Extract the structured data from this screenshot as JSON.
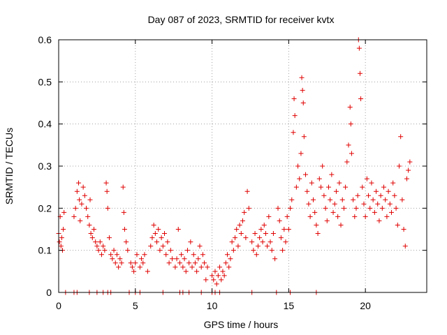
{
  "chart_data": {
    "type": "scatter",
    "title": "Day 087 of 2023, SRMTID for receiver kvtx",
    "xlabel": "GPS time / hours",
    "ylabel": "SRMTID / TECUs",
    "xlim": [
      0,
      24
    ],
    "ylim": [
      0,
      0.6
    ],
    "x_ticks": [
      0,
      5,
      10,
      15,
      20
    ],
    "y_ticks": [
      0,
      0.1,
      0.2,
      0.3,
      0.4,
      0.5,
      0.6
    ],
    "x_tick_labels": [
      "0",
      "5",
      "10",
      "15",
      "20"
    ],
    "y_tick_labels": [
      "0",
      "0.1",
      "0.2",
      "0.3",
      "0.4",
      "0.5",
      "0.6"
    ],
    "grid": true,
    "marker": "plus",
    "color": "#e00000",
    "series": [
      {
        "name": "SRMTID",
        "points": [
          [
            0.0,
            0.14
          ],
          [
            0.05,
            0.12
          ],
          [
            0.1,
            0.18
          ],
          [
            0.15,
            0.11
          ],
          [
            0.2,
            0.13
          ],
          [
            0.25,
            0.1
          ],
          [
            0.3,
            0.15
          ],
          [
            0.35,
            0.19
          ],
          [
            1.0,
            0.18
          ],
          [
            1.1,
            0.2
          ],
          [
            1.2,
            0.24
          ],
          [
            1.3,
            0.26
          ],
          [
            1.35,
            0.22
          ],
          [
            1.4,
            0.17
          ],
          [
            1.5,
            0.21
          ],
          [
            1.6,
            0.25
          ],
          [
            1.7,
            0.23
          ],
          [
            1.8,
            0.2
          ],
          [
            1.9,
            0.18
          ],
          [
            2.0,
            0.16
          ],
          [
            2.05,
            0.22
          ],
          [
            2.1,
            0.14
          ],
          [
            2.2,
            0.13
          ],
          [
            2.3,
            0.15
          ],
          [
            2.4,
            0.12
          ],
          [
            2.5,
            0.11
          ],
          [
            2.6,
            0.1
          ],
          [
            2.7,
            0.12
          ],
          [
            2.8,
            0.09
          ],
          [
            2.9,
            0.11
          ],
          [
            3.0,
            0.1
          ],
          [
            3.1,
            0.26
          ],
          [
            3.15,
            0.24
          ],
          [
            3.2,
            0.2
          ],
          [
            3.3,
            0.13
          ],
          [
            3.4,
            0.09
          ],
          [
            3.5,
            0.08
          ],
          [
            3.6,
            0.1
          ],
          [
            3.7,
            0.07
          ],
          [
            3.8,
            0.09
          ],
          [
            3.9,
            0.06
          ],
          [
            4.0,
            0.08
          ],
          [
            4.1,
            0.07
          ],
          [
            4.2,
            0.25
          ],
          [
            4.25,
            0.19
          ],
          [
            4.3,
            0.15
          ],
          [
            4.4,
            0.12
          ],
          [
            4.5,
            0.1
          ],
          [
            4.7,
            0.07
          ],
          [
            4.8,
            0.06
          ],
          [
            4.9,
            0.05
          ],
          [
            5.0,
            0.07
          ],
          [
            5.1,
            0.09
          ],
          [
            5.3,
            0.06
          ],
          [
            5.4,
            0.08
          ],
          [
            5.5,
            0.07
          ],
          [
            5.6,
            0.09
          ],
          [
            5.8,
            0.05
          ],
          [
            6.0,
            0.11
          ],
          [
            6.1,
            0.13
          ],
          [
            6.2,
            0.16
          ],
          [
            6.3,
            0.14
          ],
          [
            6.4,
            0.12
          ],
          [
            6.5,
            0.15
          ],
          [
            6.6,
            0.1
          ],
          [
            6.7,
            0.13
          ],
          [
            6.8,
            0.11
          ],
          [
            6.9,
            0.14
          ],
          [
            7.0,
            0.09
          ],
          [
            7.1,
            0.12
          ],
          [
            7.2,
            0.07
          ],
          [
            7.3,
            0.1
          ],
          [
            7.4,
            0.08
          ],
          [
            7.6,
            0.06
          ],
          [
            7.7,
            0.08
          ],
          [
            7.8,
            0.15
          ],
          [
            7.9,
            0.07
          ],
          [
            8.0,
            0.09
          ],
          [
            8.1,
            0.06
          ],
          [
            8.2,
            0.08
          ],
          [
            8.3,
            0.05
          ],
          [
            8.4,
            0.1
          ],
          [
            8.5,
            0.07
          ],
          [
            8.6,
            0.12
          ],
          [
            8.7,
            0.06
          ],
          [
            8.8,
            0.09
          ],
          [
            8.9,
            0.07
          ],
          [
            9.0,
            0.05
          ],
          [
            9.1,
            0.08
          ],
          [
            9.2,
            0.11
          ],
          [
            9.3,
            0.06
          ],
          [
            9.4,
            0.09
          ],
          [
            9.5,
            0.07
          ],
          [
            9.6,
            0.03
          ],
          [
            9.7,
            0.06
          ],
          [
            10.0,
            0.04
          ],
          [
            10.1,
            0.03
          ],
          [
            10.2,
            0.05
          ],
          [
            10.3,
            0.02
          ],
          [
            10.4,
            0.04
          ],
          [
            10.5,
            0.06
          ],
          [
            10.6,
            0.03
          ],
          [
            10.7,
            0.05
          ],
          [
            10.8,
            0.04
          ],
          [
            10.9,
            0.07
          ],
          [
            11.0,
            0.09
          ],
          [
            11.1,
            0.06
          ],
          [
            11.2,
            0.08
          ],
          [
            11.3,
            0.12
          ],
          [
            11.4,
            0.1
          ],
          [
            11.5,
            0.13
          ],
          [
            11.6,
            0.15
          ],
          [
            11.7,
            0.11
          ],
          [
            11.8,
            0.16
          ],
          [
            11.9,
            0.14
          ],
          [
            12.0,
            0.17
          ],
          [
            12.1,
            0.19
          ],
          [
            12.2,
            0.13
          ],
          [
            12.3,
            0.24
          ],
          [
            12.4,
            0.2
          ],
          [
            12.6,
            0.12
          ],
          [
            12.7,
            0.1
          ],
          [
            12.8,
            0.14
          ],
          [
            12.9,
            0.09
          ],
          [
            13.0,
            0.11
          ],
          [
            13.1,
            0.13
          ],
          [
            13.2,
            0.15
          ],
          [
            13.3,
            0.12
          ],
          [
            13.4,
            0.16
          ],
          [
            13.5,
            0.14
          ],
          [
            13.6,
            0.11
          ],
          [
            13.7,
            0.18
          ],
          [
            13.8,
            0.12
          ],
          [
            13.9,
            0.1
          ],
          [
            14.0,
            0.14
          ],
          [
            14.1,
            0.08
          ],
          [
            14.3,
            0.2
          ],
          [
            14.4,
            0.17
          ],
          [
            14.5,
            0.13
          ],
          [
            14.6,
            0.1
          ],
          [
            14.7,
            0.15
          ],
          [
            14.8,
            0.12
          ],
          [
            14.9,
            0.18
          ],
          [
            15.0,
            0.15
          ],
          [
            15.1,
            0.2
          ],
          [
            15.2,
            0.22
          ],
          [
            15.3,
            0.38
          ],
          [
            15.35,
            0.46
          ],
          [
            15.4,
            0.42
          ],
          [
            15.5,
            0.25
          ],
          [
            15.6,
            0.3
          ],
          [
            15.7,
            0.27
          ],
          [
            15.8,
            0.33
          ],
          [
            15.85,
            0.51
          ],
          [
            15.9,
            0.48
          ],
          [
            15.95,
            0.45
          ],
          [
            16.0,
            0.37
          ],
          [
            16.1,
            0.28
          ],
          [
            16.2,
            0.24
          ],
          [
            16.3,
            0.21
          ],
          [
            16.4,
            0.18
          ],
          [
            16.5,
            0.26
          ],
          [
            16.6,
            0.22
          ],
          [
            16.7,
            0.19
          ],
          [
            16.8,
            0.16
          ],
          [
            16.9,
            0.14
          ],
          [
            17.0,
            0.27
          ],
          [
            17.1,
            0.25
          ],
          [
            17.2,
            0.3
          ],
          [
            17.3,
            0.23
          ],
          [
            17.4,
            0.2
          ],
          [
            17.5,
            0.17
          ],
          [
            17.6,
            0.25
          ],
          [
            17.7,
            0.22
          ],
          [
            17.8,
            0.28
          ],
          [
            17.9,
            0.19
          ],
          [
            18.0,
            0.21
          ],
          [
            18.1,
            0.24
          ],
          [
            18.2,
            0.18
          ],
          [
            18.3,
            0.26
          ],
          [
            18.4,
            0.16
          ],
          [
            18.5,
            0.22
          ],
          [
            18.6,
            0.2
          ],
          [
            18.7,
            0.25
          ],
          [
            18.8,
            0.31
          ],
          [
            18.9,
            0.35
          ],
          [
            19.0,
            0.44
          ],
          [
            19.05,
            0.4
          ],
          [
            19.1,
            0.33
          ],
          [
            19.2,
            0.22
          ],
          [
            19.3,
            0.18
          ],
          [
            19.4,
            0.2
          ],
          [
            19.5,
            0.23
          ],
          [
            19.55,
            0.6
          ],
          [
            19.6,
            0.58
          ],
          [
            19.65,
            0.52
          ],
          [
            19.7,
            0.46
          ],
          [
            19.8,
            0.25
          ],
          [
            19.9,
            0.21
          ],
          [
            20.0,
            0.18
          ],
          [
            20.1,
            0.27
          ],
          [
            20.2,
            0.23
          ],
          [
            20.3,
            0.2
          ],
          [
            20.4,
            0.26
          ],
          [
            20.5,
            0.22
          ],
          [
            20.6,
            0.19
          ],
          [
            20.7,
            0.24
          ],
          [
            20.8,
            0.21
          ],
          [
            20.9,
            0.17
          ],
          [
            21.0,
            0.23
          ],
          [
            21.1,
            0.2
          ],
          [
            21.2,
            0.25
          ],
          [
            21.3,
            0.22
          ],
          [
            21.4,
            0.18
          ],
          [
            21.5,
            0.24
          ],
          [
            21.6,
            0.21
          ],
          [
            21.7,
            0.19
          ],
          [
            21.8,
            0.26
          ],
          [
            21.9,
            0.23
          ],
          [
            22.0,
            0.2
          ],
          [
            22.1,
            0.16
          ],
          [
            22.2,
            0.3
          ],
          [
            22.3,
            0.37
          ],
          [
            22.4,
            0.22
          ],
          [
            22.5,
            0.15
          ],
          [
            22.6,
            0.11
          ],
          [
            22.7,
            0.27
          ],
          [
            22.8,
            0.29
          ],
          [
            22.9,
            0.31
          ]
        ]
      }
    ],
    "zero_points_x": [
      0.45,
      1.0,
      1.2,
      2.0,
      2.5,
      2.9,
      3.2,
      3.4,
      4.6,
      5.0,
      5.3,
      6.8,
      7.9,
      8.1,
      8.5,
      9.3,
      10.0,
      10.2,
      10.5,
      12.6,
      14.2,
      15.1,
      16.8
    ]
  }
}
